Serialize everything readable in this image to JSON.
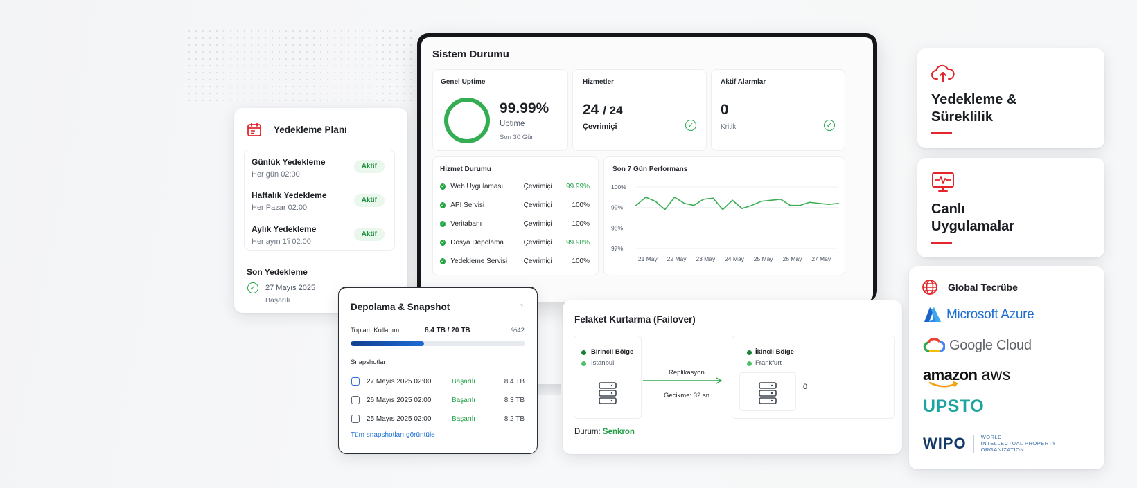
{
  "backup_plan": {
    "title": "Yedekleme Planı",
    "items": [
      {
        "name": "Günlük Yedekleme",
        "schedule": "Her gün 02:00",
        "status": "Aktif"
      },
      {
        "name": "Haftalık Yedekleme",
        "schedule": "Her Pazar 02:00",
        "status": "Aktif"
      },
      {
        "name": "Aylık Yedekleme",
        "schedule": "Her ayın 1'i 02:00",
        "status": "Aktif"
      }
    ],
    "last_backup_title": "Son Yedekleme",
    "last_backup_date": "27 Mayıs 2025",
    "last_backup_status": "Başarılı"
  },
  "system": {
    "title": "Sistem Durumu",
    "uptime": {
      "label": "Genel Uptime",
      "value": "99.99%",
      "caption": "Uptime",
      "period": "Son 30 Gün",
      "fraction": 0.9999
    },
    "services": {
      "label": "Hizmetler",
      "value": "24",
      "total": "/ 24",
      "caption": "Çevrimiçi"
    },
    "alarms": {
      "label": "Aktif Alarmlar",
      "value": "0",
      "caption": "Kritik"
    },
    "service_status": {
      "title": "Hizmet Durumu",
      "rows": [
        {
          "name": "Web Uygulaması",
          "status": "Çevrimiçi",
          "pct": "99.99%"
        },
        {
          "name": "API Servisi",
          "status": "Çevrimiçi",
          "pct": "100%"
        },
        {
          "name": "Veritabanı",
          "status": "Çevrimiçi",
          "pct": "100%"
        },
        {
          "name": "Dosya Depolama",
          "status": "Çevrimiçi",
          "pct": "99.98%"
        },
        {
          "name": "Yedekleme Servisi",
          "status": "Çevrimiçi",
          "pct": "100%"
        }
      ]
    }
  },
  "chart_data": {
    "type": "line",
    "title": "Son 7 Gün Performans",
    "categories": [
      "21 May",
      "22 May",
      "23 May",
      "24 May",
      "25 May",
      "26 May",
      "27 May"
    ],
    "y_ticks": [
      "100%",
      "99%",
      "98%",
      "97%"
    ],
    "ylim": [
      97,
      100
    ],
    "x": [
      0,
      0.5,
      1,
      1.5,
      2,
      2.5,
      3,
      3.5,
      4,
      4.5,
      5,
      5.5,
      6,
      6.5,
      7,
      7.5,
      8,
      8.5,
      9,
      9.5,
      10,
      10.5
    ],
    "series": [
      {
        "values": [
          99.1,
          99.5,
          99.3,
          98.9,
          99.5,
          99.2,
          99.1,
          99.4,
          99.45,
          98.9,
          99.35,
          98.95,
          99.1,
          99.3,
          99.35,
          99.4,
          99.1,
          99.1,
          99.25,
          99.2,
          99.15,
          99.2
        ],
        "color": "#3aae55"
      }
    ],
    "grid": true
  },
  "storage": {
    "title": "Depolama & Snapshot",
    "usage_label": "Toplam Kullanım",
    "usage_value": "8.4 TB / 20 TB",
    "usage_pct": "%42",
    "usage_fraction": 0.42,
    "snapshots_title": "Snapshotlar",
    "snapshots": [
      {
        "date": "27 Mayıs 2025 02:00",
        "status": "Başarılı",
        "size": "8.4 TB"
      },
      {
        "date": "26 Mayıs 2025 02:00",
        "status": "Başarılı",
        "size": "8.3 TB"
      },
      {
        "date": "25 Mayıs 2025 02:00",
        "status": "Başarılı",
        "size": "8.2 TB"
      }
    ],
    "view_all": "Tüm snapshotları görüntüle"
  },
  "failover": {
    "title": "Felaket Kurtarma (Failover)",
    "primary_label": "Birincil Bölge",
    "primary_city": "İstanbul",
    "secondary_label": "İkincil Bölge",
    "secondary_city": "Frankfurt",
    "replication_label": "Replikasyon",
    "latency_label": "Gecikme: 32 sn",
    "zero_label": "0",
    "state_label": "Durum:",
    "state_value": "Senkron"
  },
  "features": {
    "backup_title": "Yedekleme & Süreklilik",
    "live_title": "Canlı Uygulamalar",
    "global_title": "Global Tecrübe",
    "logos": {
      "azure": "Microsoft Azure",
      "google": "Google Cloud",
      "amazon": "amazon",
      "aws": "aws",
      "upsto": "UPSTO",
      "wipo": "WIPO",
      "wipo_sub": [
        "WORLD",
        "INTELLECTUAL PROPERTY",
        "ORGANIZATION"
      ]
    }
  },
  "colors": {
    "accent_red": "#e3262b",
    "success": "#22a447",
    "link": "#1a6fd4",
    "progress": "#1757b8"
  }
}
